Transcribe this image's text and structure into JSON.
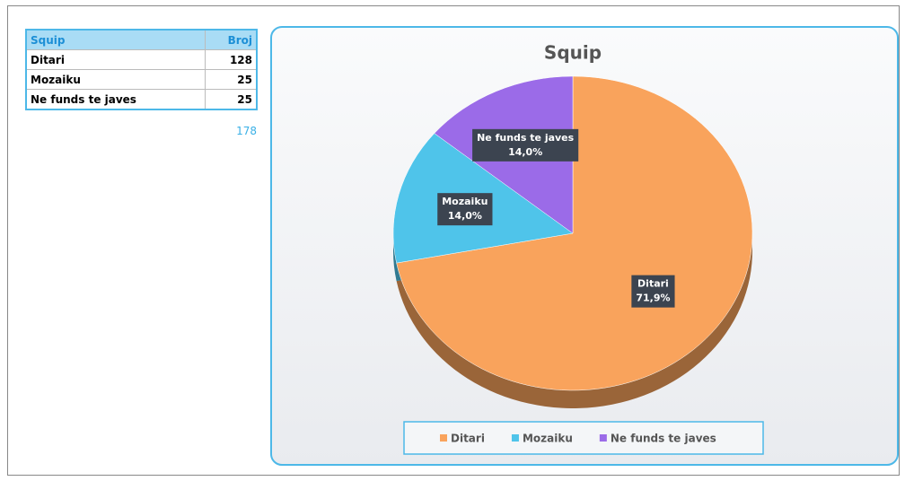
{
  "table": {
    "header": [
      "Squip",
      "Broj"
    ],
    "rows": [
      [
        "Ditari",
        128
      ],
      [
        "Mozaiku",
        25
      ],
      [
        "Ne funds te javes",
        25
      ]
    ],
    "total": 178
  },
  "chart_data": {
    "type": "pie",
    "title": "Squip",
    "categories": [
      "Ditari",
      "Mozaiku",
      "Ne funds te javes"
    ],
    "values": [
      71.9,
      14.0,
      14.0
    ],
    "value_labels": [
      "71,9%",
      "14,0%",
      "14,0%"
    ],
    "colors": [
      "#f9a35c",
      "#4fc4ea",
      "#9b6be8"
    ],
    "legend": "bottom"
  }
}
